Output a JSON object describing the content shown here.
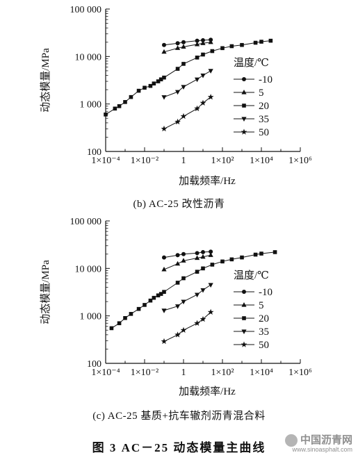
{
  "chart_data": [
    {
      "type": "scatter",
      "panel": "b",
      "caption": "(b) AC-25 改性沥青",
      "xlabel": "加载频率/Hz",
      "ylabel": "动态模量/MPa",
      "x_scale": "log",
      "y_scale": "log",
      "xlim": [
        0.0001,
        1000000
      ],
      "ylim": [
        100,
        100000
      ],
      "x_ticks": [
        0.0001,
        0.01,
        1,
        100,
        10000,
        1000000
      ],
      "x_tick_labels": [
        "1×10⁻⁴",
        "1×10⁻²",
        "1",
        "1×10²",
        "1×10⁴",
        "1×10⁶"
      ],
      "y_ticks": [
        100,
        1000,
        10000,
        100000
      ],
      "y_tick_labels": [
        "100",
        "1 000",
        "10 000",
        "100 000"
      ],
      "legend_title": "温度/℃",
      "legend_position": "right",
      "grid": false,
      "series": [
        {
          "name": "-10",
          "marker": "circle",
          "x": [
            0.1,
            0.5,
            1,
            5,
            10,
            25
          ],
          "y": [
            17500,
            19000,
            20000,
            21500,
            22000,
            22500
          ]
        },
        {
          "name": "5",
          "marker": "triangle-up",
          "x": [
            0.1,
            0.5,
            1,
            5,
            10,
            25
          ],
          "y": [
            12500,
            15000,
            16000,
            18000,
            19000,
            20000
          ]
        },
        {
          "name": "20",
          "marker": "square",
          "x": [
            0.0001,
            0.0003,
            0.0005,
            0.001,
            0.002,
            0.005,
            0.01,
            0.02,
            0.03,
            0.05,
            0.07,
            0.1,
            0.5,
            1,
            5,
            10,
            30,
            100,
            300,
            1000,
            5000,
            10000,
            30000
          ],
          "y": [
            600,
            800,
            900,
            1100,
            1400,
            1900,
            2200,
            2400,
            2700,
            3000,
            3300,
            3600,
            5500,
            7000,
            9500,
            11000,
            13000,
            15000,
            16500,
            17500,
            19500,
            20500,
            21500
          ]
        },
        {
          "name": "35",
          "marker": "triangle-down",
          "x": [
            0.1,
            0.5,
            1,
            5,
            10,
            25
          ],
          "y": [
            1400,
            1800,
            2300,
            3300,
            4000,
            5000
          ]
        },
        {
          "name": "50",
          "marker": "star",
          "x": [
            0.1,
            0.5,
            1,
            5,
            10,
            25
          ],
          "y": [
            300,
            420,
            550,
            800,
            1050,
            1400
          ]
        }
      ]
    },
    {
      "type": "scatter",
      "panel": "c",
      "caption": "(c) AC-25 基质+抗车辙剂沥青混合料",
      "xlabel": "加载频率/Hz",
      "ylabel": "动态模量/MPa",
      "x_scale": "log",
      "y_scale": "log",
      "xlim": [
        0.0001,
        1000000
      ],
      "ylim": [
        100,
        100000
      ],
      "x_ticks": [
        0.0001,
        0.01,
        1,
        100,
        10000,
        1000000
      ],
      "x_tick_labels": [
        "1×10⁻⁴",
        "1×10⁻²",
        "1",
        "1×10²",
        "1×10⁴",
        "1×10⁶"
      ],
      "y_ticks": [
        100,
        1000,
        10000,
        100000
      ],
      "y_tick_labels": [
        "100",
        "1 000",
        "10 000",
        "100 000"
      ],
      "legend_title": "温度/℃",
      "legend_position": "right",
      "grid": false,
      "series": [
        {
          "name": "-10",
          "marker": "circle",
          "x": [
            0.1,
            0.5,
            1,
            5,
            10,
            25
          ],
          "y": [
            17000,
            19000,
            20000,
            21000,
            22000,
            22500
          ]
        },
        {
          "name": "5",
          "marker": "triangle-up",
          "x": [
            0.1,
            0.5,
            1,
            5,
            10,
            25
          ],
          "y": [
            9500,
            12500,
            14500,
            16500,
            17500,
            19000
          ]
        },
        {
          "name": "20",
          "marker": "square",
          "x": [
            0.0002,
            0.0005,
            0.001,
            0.002,
            0.005,
            0.01,
            0.02,
            0.03,
            0.05,
            0.07,
            0.1,
            0.5,
            1,
            5,
            10,
            30,
            100,
            300,
            1000,
            5000,
            10000,
            50000
          ],
          "y": [
            550,
            700,
            900,
            1100,
            1400,
            1700,
            2100,
            2400,
            2700,
            2900,
            3200,
            5000,
            6200,
            8500,
            10000,
            12000,
            14000,
            15500,
            17000,
            19500,
            20500,
            22000
          ]
        },
        {
          "name": "35",
          "marker": "triangle-down",
          "x": [
            0.1,
            0.5,
            1,
            5,
            10,
            25
          ],
          "y": [
            1300,
            1600,
            2000,
            2800,
            3500,
            4500
          ]
        },
        {
          "name": "50",
          "marker": "star",
          "x": [
            0.1,
            0.5,
            1,
            5,
            10,
            25
          ],
          "y": [
            290,
            400,
            500,
            700,
            850,
            1200
          ]
        }
      ]
    }
  ],
  "figure_title": "图 3   AC－25 动态模量主曲线",
  "watermark": {
    "name": "中国沥青网",
    "url": "www.sinoasphalt.com"
  }
}
